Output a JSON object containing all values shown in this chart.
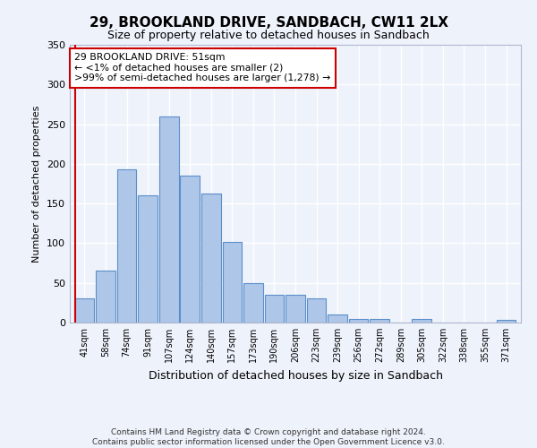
{
  "title": "29, BROOKLAND DRIVE, SANDBACH, CW11 2LX",
  "subtitle": "Size of property relative to detached houses in Sandbach",
  "xlabel": "Distribution of detached houses by size in Sandbach",
  "ylabel": "Number of detached properties",
  "bar_labels": [
    "41sqm",
    "58sqm",
    "74sqm",
    "91sqm",
    "107sqm",
    "124sqm",
    "140sqm",
    "157sqm",
    "173sqm",
    "190sqm",
    "206sqm",
    "223sqm",
    "239sqm",
    "256sqm",
    "272sqm",
    "289sqm",
    "305sqm",
    "322sqm",
    "338sqm",
    "355sqm",
    "371sqm"
  ],
  "bar_values": [
    30,
    65,
    193,
    160,
    260,
    185,
    163,
    102,
    50,
    35,
    35,
    30,
    10,
    5,
    4,
    0,
    5,
    0,
    0,
    0,
    3
  ],
  "bar_color": "#aec6e8",
  "bar_edge_color": "#5b8fc9",
  "highlight_color": "#cc0000",
  "annotation_text": "29 BROOKLAND DRIVE: 51sqm\n← <1% of detached houses are smaller (2)\n>99% of semi-detached houses are larger (1,278) →",
  "annotation_box_color": "#ffffff",
  "annotation_box_edge_color": "#cc0000",
  "footer_line1": "Contains HM Land Registry data © Crown copyright and database right 2024.",
  "footer_line2": "Contains public sector information licensed under the Open Government Licence v3.0.",
  "ylim": [
    0,
    350
  ],
  "background_color": "#eef2fb",
  "grid_color": "#ffffff",
  "yticks": [
    0,
    50,
    100,
    150,
    200,
    250,
    300,
    350
  ]
}
